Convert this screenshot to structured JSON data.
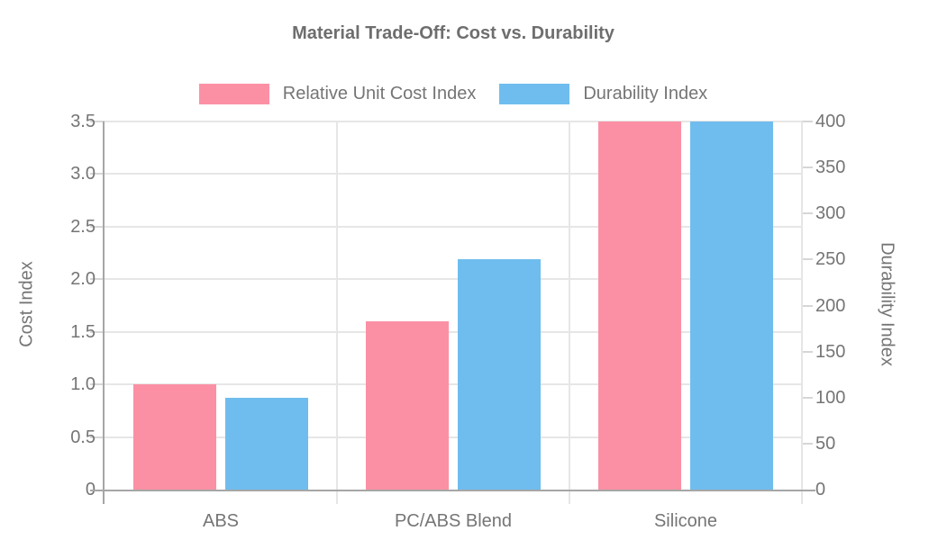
{
  "chart_data": {
    "type": "bar",
    "title": "Material Trade-Off: Cost vs. Durability",
    "categories": [
      "ABS",
      "PC/ABS Blend",
      "Silicone"
    ],
    "series": [
      {
        "name": "Relative Unit Cost Index",
        "axis": "left",
        "color": "#FB90A5",
        "values": [
          1.0,
          1.6,
          3.5
        ]
      },
      {
        "name": "Durability Index",
        "axis": "right",
        "color": "#6FBDEE",
        "values": [
          100,
          250,
          400
        ]
      }
    ],
    "left_axis": {
      "label": "Cost Index",
      "min": 0,
      "max": 3.5,
      "step": 0.5,
      "ticks": [
        "0",
        "0.5",
        "1.0",
        "1.5",
        "2.0",
        "2.5",
        "3.0",
        "3.5"
      ]
    },
    "right_axis": {
      "label": "Durability Index",
      "min": 0,
      "max": 400,
      "step": 50,
      "ticks": [
        "0",
        "50",
        "100",
        "150",
        "200",
        "250",
        "300",
        "350",
        "400"
      ]
    },
    "grid": true,
    "legend_position": "top",
    "colors": {
      "background": "#ffffff",
      "text": "#757575",
      "title_text": "#6e6e6e",
      "gridline": "#e6e6e6",
      "axis_line": "#a6a6a6",
      "tick_mark": "#d6d6d6"
    }
  }
}
